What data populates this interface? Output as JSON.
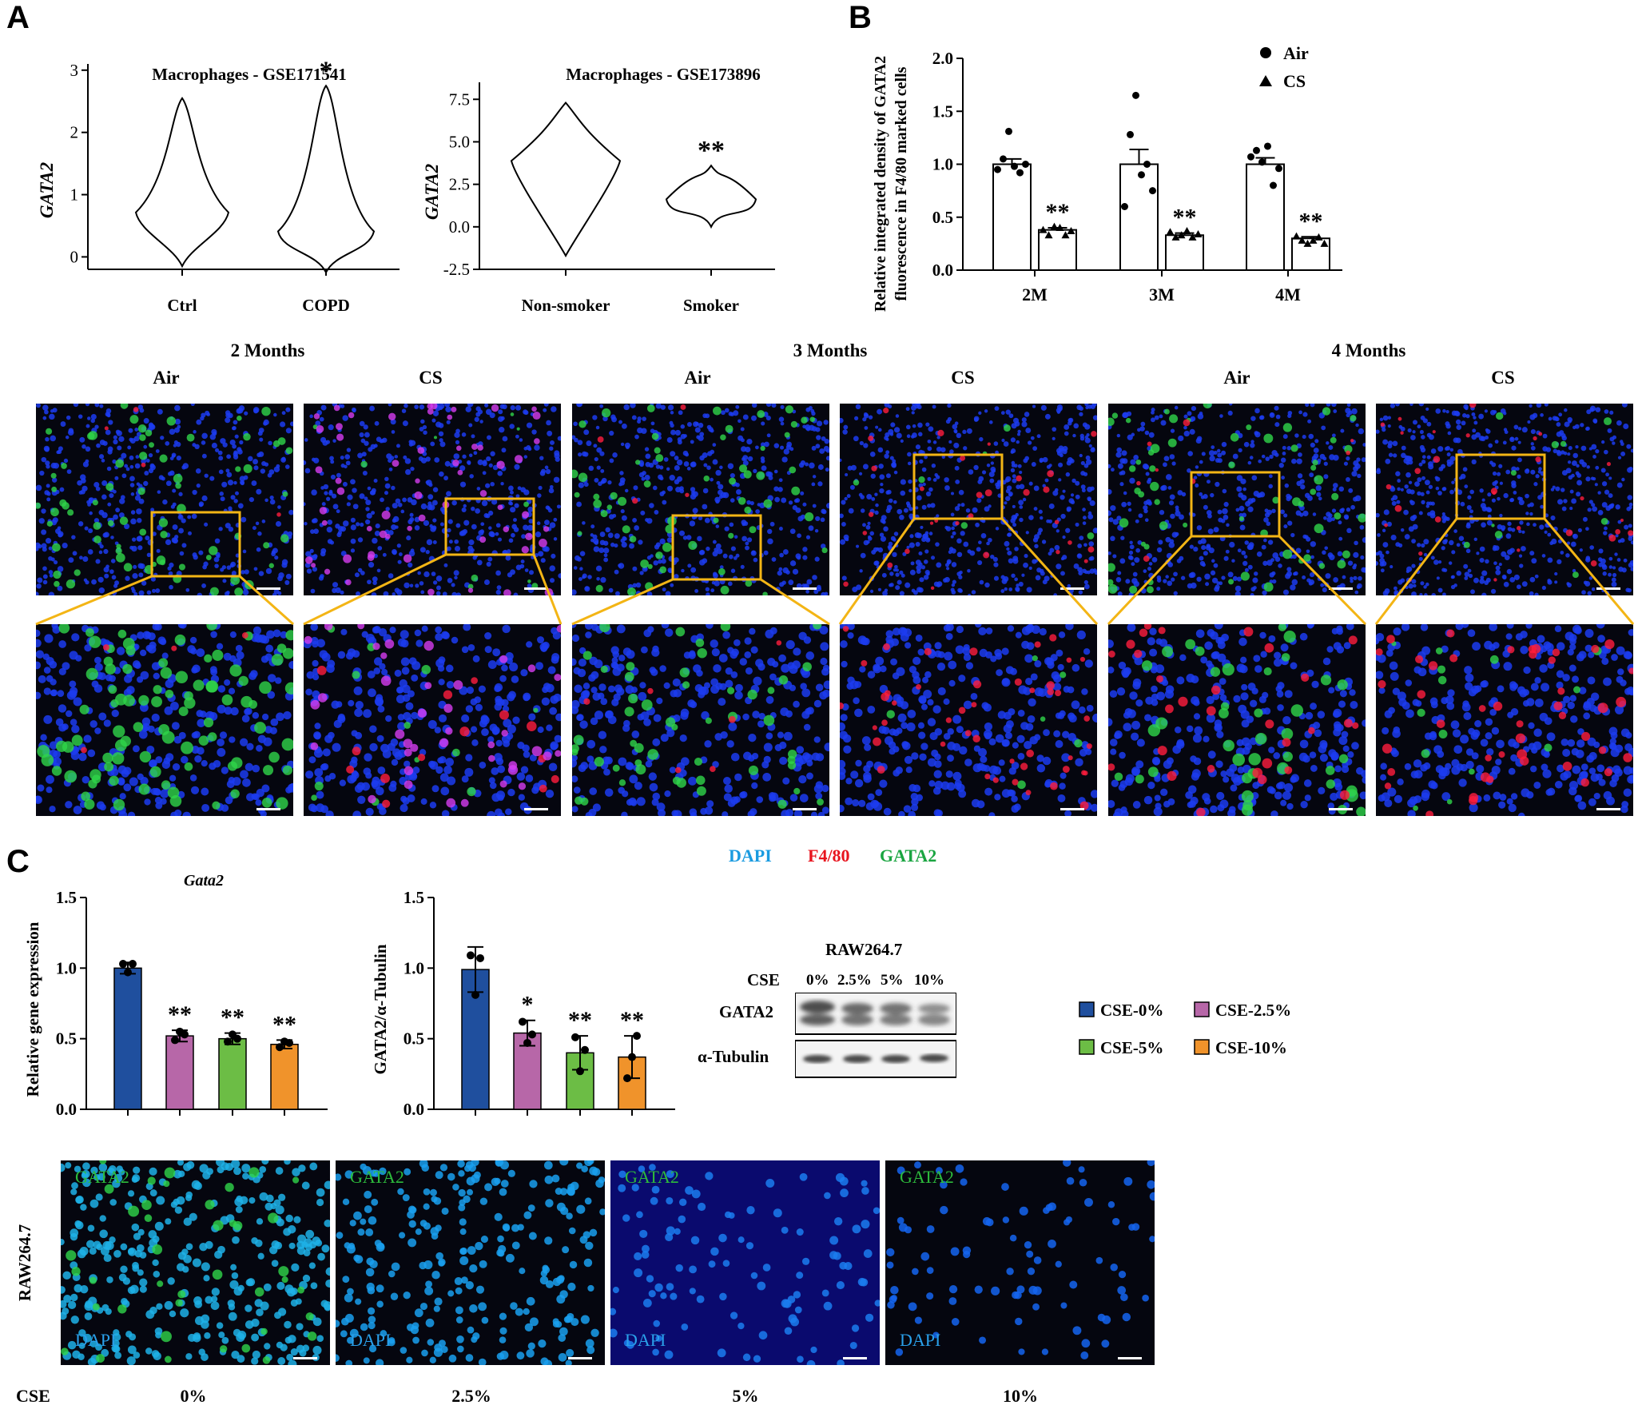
{
  "panels": {
    "a": "A",
    "b": "B",
    "c": "C"
  },
  "panel_a": {
    "violin1": {
      "title": "Macrophages - GSE171541",
      "ylabel": "GATA2",
      "yticks": [
        "0",
        "1",
        "2",
        "3"
      ],
      "categories": [
        "Ctrl",
        "COPD"
      ],
      "sig": "*"
    },
    "violin2": {
      "title": "Macrophages - GSE173896",
      "ylabel": "GATA2",
      "yticks": [
        "-2.5",
        "0.0",
        "2.5",
        "5.0",
        "7.5"
      ],
      "categories": [
        "Non-smoker",
        "Smoker"
      ],
      "sig": "**"
    }
  },
  "panel_b": {
    "ylabel_line1": "Relative integrated density of GATA2",
    "ylabel_line2": "fluorescence in F4/80 marked cells",
    "yticks": [
      "0.0",
      "0.5",
      "1.0",
      "1.5",
      "2.0"
    ],
    "legend": [
      {
        "label": "Air",
        "symbol": "circle"
      },
      {
        "label": "CS",
        "symbol": "triangle"
      }
    ],
    "sig": "**"
  },
  "micro_header": {
    "months": [
      "2 Months",
      "3 Months",
      "4 Months"
    ],
    "conditions": [
      "Air",
      "CS",
      "Air",
      "CS",
      "Air",
      "CS"
    ]
  },
  "stain_legend": [
    {
      "label": "DAPI",
      "color": "#1a9be0"
    },
    {
      "label": "F4/80",
      "color": "#e8141e"
    },
    {
      "label": "GATA2",
      "color": "#1aa541"
    }
  ],
  "panel_c": {
    "bar1": {
      "title": "Gata2",
      "ylabel": "Relative gene expression",
      "yticks": [
        "0.0",
        "0.5",
        "1.0",
        "1.5"
      ],
      "sigs": [
        "",
        "**",
        "**",
        "**"
      ]
    },
    "bar2": {
      "ylabel": "GATA2/α-Tubulin",
      "yticks": [
        "0.0",
        "0.5",
        "1.0",
        "1.5"
      ],
      "sigs": [
        "",
        "*",
        "**",
        "**"
      ]
    },
    "blot": {
      "title": "RAW264.7",
      "cse_label": "CSE",
      "lanes": [
        "0%",
        "2.5%",
        "5%",
        "10%"
      ],
      "rows": [
        "GATA2",
        "α-Tubulin"
      ]
    },
    "legend": [
      {
        "label": "CSE-0%",
        "color": "#1f4f9e"
      },
      {
        "label": "CSE-2.5%",
        "color": "#b767a8"
      },
      {
        "label": "CSE-5%",
        "color": "#6cbd45"
      },
      {
        "label": "CSE-10%",
        "color": "#f0932b"
      }
    ],
    "cell_row_label": "RAW264.7",
    "cell_overlay_top": "GATA2",
    "cell_overlay_bottom": "DAPI",
    "cse_axis_label": "CSE",
    "cse_values": [
      "0%",
      "2.5%",
      "5%",
      "10%"
    ]
  },
  "chart_data": [
    {
      "type": "violin",
      "title": "Macrophages - GSE171541",
      "ylabel": "GATA2",
      "categories": [
        "Ctrl",
        "COPD"
      ],
      "ylim": [
        -0.2,
        3.1
      ],
      "ranges": [
        [
          -0.15,
          2.55
        ],
        [
          -0.25,
          2.75
        ]
      ],
      "annotations": [
        "",
        "*"
      ]
    },
    {
      "type": "violin",
      "title": "Macrophages - GSE173896",
      "ylabel": "GATA2",
      "categories": [
        "Non-smoker",
        "Smoker"
      ],
      "ylim": [
        -2.5,
        8.5
      ],
      "ranges": [
        [
          -1.7,
          7.3
        ],
        [
          0.0,
          3.6
        ]
      ],
      "annotations": [
        "",
        "**"
      ]
    },
    {
      "type": "bar",
      "ylabel": "Relative integrated density of GATA2 fluorescence in F4/80 marked cells",
      "categories": [
        "2M",
        "3M",
        "4M"
      ],
      "ylim": [
        0,
        2.0
      ],
      "series": [
        {
          "name": "Air",
          "values": [
            1.0,
            1.0,
            1.0
          ],
          "errors": [
            0.05,
            0.14,
            0.06
          ],
          "points": [
            [
              0.95,
              1.05,
              1.31,
              0.98,
              0.92,
              1.0
            ],
            [
              0.6,
              1.28,
              1.65,
              0.9,
              1.0,
              0.75
            ],
            [
              1.07,
              1.13,
              1.02,
              1.17,
              0.8,
              0.96
            ]
          ]
        },
        {
          "name": "CS",
          "values": [
            0.38,
            0.33,
            0.3
          ],
          "errors": [
            0.02,
            0.02,
            0.015
          ],
          "points": [
            [
              0.38,
              0.33,
              0.41,
              0.4,
              0.33,
              0.37
            ],
            [
              0.36,
              0.31,
              0.33,
              0.37,
              0.31,
              0.34
            ],
            [
              0.32,
              0.28,
              0.25,
              0.28,
              0.31,
              0.25
            ]
          ]
        }
      ],
      "annotations": [
        "**",
        "**",
        "**"
      ]
    },
    {
      "type": "bar",
      "title": "Gata2",
      "ylabel": "Relative gene expression",
      "categories": [
        "CSE-0%",
        "CSE-2.5%",
        "CSE-5%",
        "CSE-10%"
      ],
      "ylim": [
        0,
        1.5
      ],
      "values": [
        1.0,
        0.52,
        0.5,
        0.46
      ],
      "errors": [
        0.04,
        0.04,
        0.04,
        0.03
      ],
      "points": [
        [
          1.03,
          0.97,
          1.03
        ],
        [
          0.49,
          0.55,
          0.53
        ],
        [
          0.48,
          0.53,
          0.5
        ],
        [
          0.44,
          0.48,
          0.47
        ]
      ],
      "annotations": [
        "",
        "**",
        "**",
        "**"
      ]
    },
    {
      "type": "bar",
      "ylabel": "GATA2/α-Tubulin",
      "categories": [
        "CSE-0%",
        "CSE-2.5%",
        "CSE-5%",
        "CSE-10%"
      ],
      "ylim": [
        0,
        1.5
      ],
      "values": [
        0.99,
        0.54,
        0.4,
        0.37
      ],
      "errors": [
        0.16,
        0.09,
        0.12,
        0.15
      ],
      "points": [
        [
          1.09,
          0.81,
          1.07
        ],
        [
          0.62,
          0.47,
          0.53
        ],
        [
          0.51,
          0.27,
          0.42
        ],
        [
          0.22,
          0.37,
          0.52
        ]
      ],
      "annotations": [
        "",
        "*",
        "**",
        "**"
      ]
    }
  ]
}
